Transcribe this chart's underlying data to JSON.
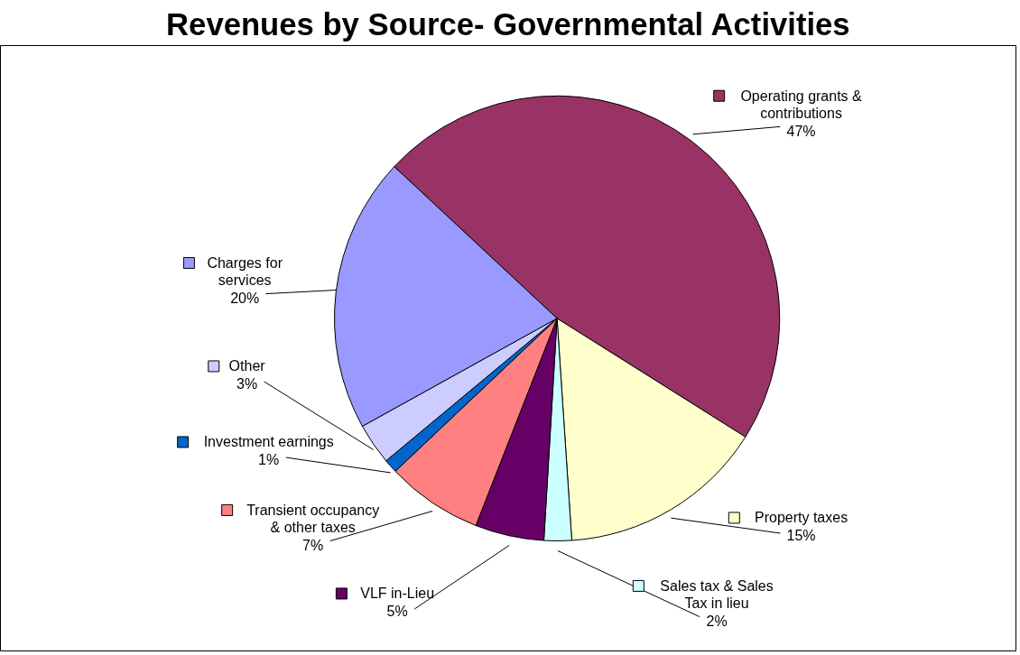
{
  "chart_data": {
    "type": "pie",
    "title": "Revenues by Source- Governmental Activities",
    "categories": [
      "Operating grants & contributions",
      "Property taxes",
      "Sales tax & Sales Tax in lieu",
      "VLF in-Lieu",
      "Transient occupancy & other taxes",
      "Investment earnings",
      "Other",
      "Charges for services"
    ],
    "values": [
      47,
      15,
      2,
      5,
      7,
      1,
      3,
      20
    ],
    "colors": [
      "#993366",
      "#ffffcc",
      "#ccffff",
      "#660066",
      "#ff8080",
      "#0066cc",
      "#ccccff",
      "#9999ff"
    ],
    "value_labels": [
      "47%",
      "15%",
      "2%",
      "5%",
      "7%",
      "1%",
      "3%",
      "20%"
    ],
    "legend": "left"
  }
}
